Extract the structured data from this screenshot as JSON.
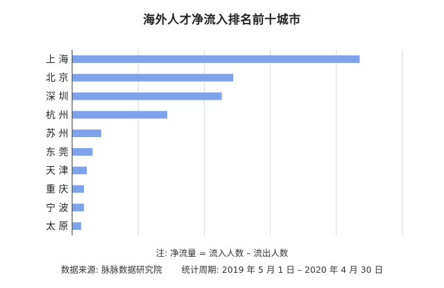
{
  "chart_data": {
    "type": "bar",
    "orientation": "horizontal",
    "title": "海外人才净流入排名前十城市",
    "categories": [
      "上 海",
      "北 京",
      "深 圳",
      "杭 州",
      "苏 州",
      "东 莞",
      "天 津",
      "重 庆",
      "宁 波",
      "太 原"
    ],
    "values": [
      100,
      56,
      52,
      33,
      10,
      7,
      5,
      4,
      4,
      3
    ],
    "xlim": [
      0,
      115
    ],
    "grid": true,
    "legend": "none",
    "colors": {
      "bar": "#7ea3ea",
      "grid": "#d9d9d9",
      "axis": "#333333"
    }
  },
  "footer": {
    "note": "注:  净流量 = 流入人数 – 流出人数",
    "source": "数据来源:  脉脉数据研究院",
    "period": "统计周期:  2019 年 5 月 1 日 – 2020 年 4 月 30 日"
  }
}
